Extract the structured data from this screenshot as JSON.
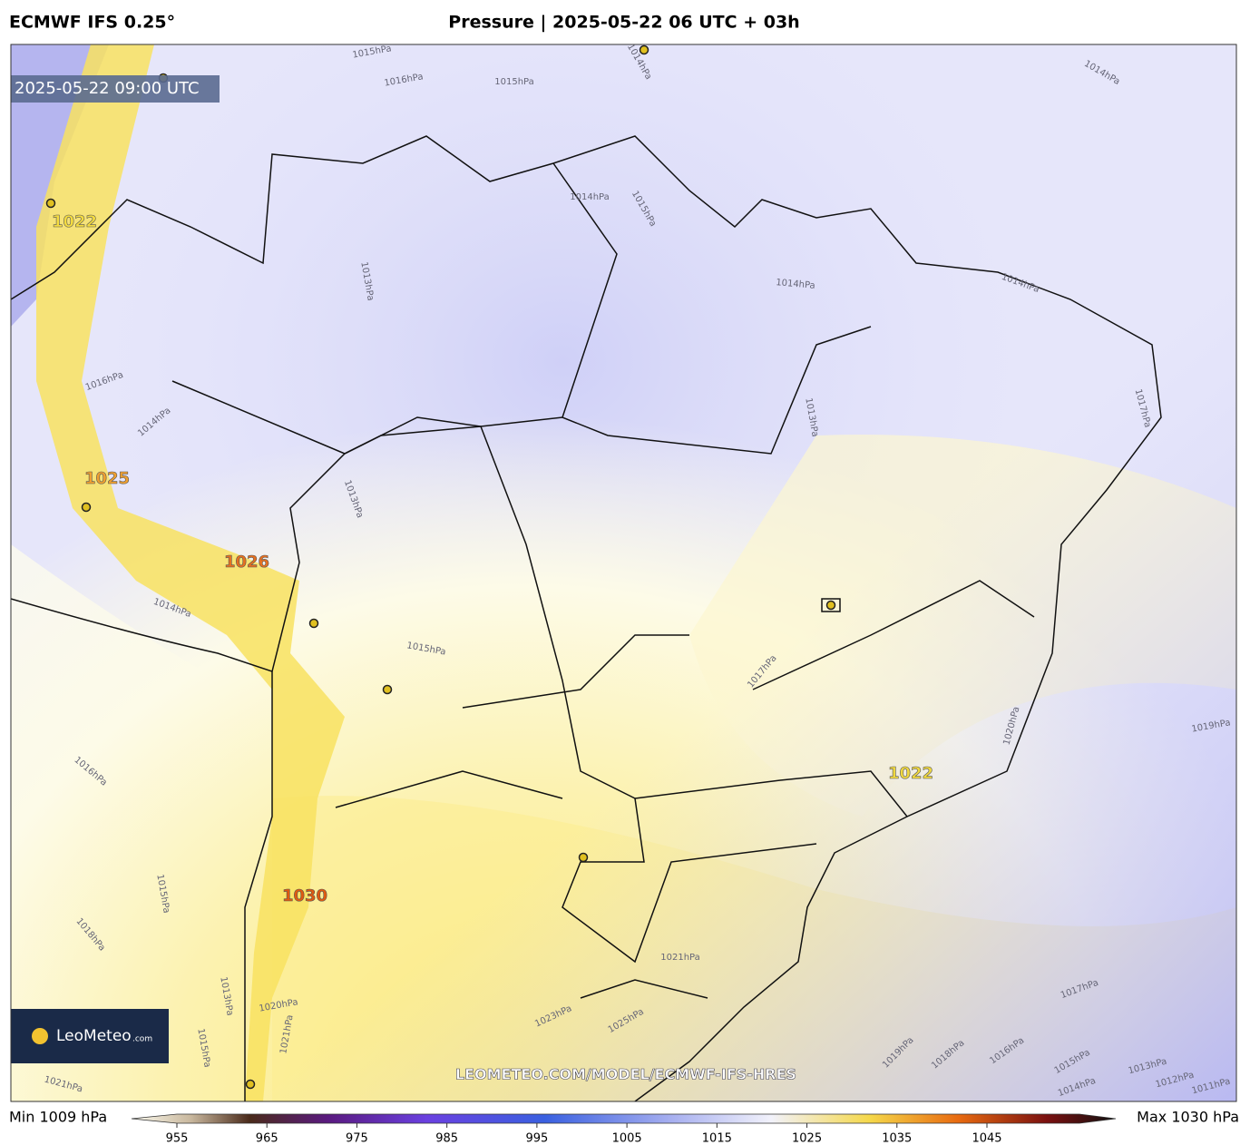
{
  "header": {
    "model": "ECMWF IFS 0.25°",
    "title": "Pressure | 2025-05-22 06 UTC + 03h"
  },
  "map": {
    "valid_time": "2025-05-22 09:00 UTC",
    "pressure_labels": [
      "1022",
      "1025",
      "1026",
      "1030",
      "1022"
    ],
    "contour_labels": [
      "1015hPa",
      "1016hPa",
      "1015hPa",
      "1014hPa",
      "1014hPa",
      "1014hPa",
      "1015hPa",
      "1013hPa",
      "1014hPa",
      "1014hPa",
      "1013hPa",
      "1017hPa",
      "1016hPa",
      "1014hPa",
      "1013hPa",
      "1014hPa",
      "1015hPa",
      "1017hPa",
      "1020hPa",
      "1019hPa",
      "1016hPa",
      "1015hPa",
      "1018hPa",
      "1021hPa",
      "1017hPa",
      "1019hPa",
      "1018hPa",
      "1016hPa",
      "1015hPa",
      "1014hPa",
      "1013hPa",
      "1012hPa",
      "1011hPa",
      "1020hPa",
      "1023hPa",
      "1021hPa",
      "1025hPa",
      "1013hPa",
      "1015hPa",
      "1021hPa"
    ],
    "watermark": "LEOMETEO.COM/MODEL/ECMWF-IFS-HRES",
    "logo": {
      "name": "LeoMeteo",
      "suffix": ".com"
    }
  },
  "colorbar": {
    "min_label": "Min 1009 hPa",
    "max_label": "Max 1030 hPa",
    "ticks": [
      955,
      965,
      975,
      985,
      995,
      1005,
      1015,
      1025,
      1035,
      1045
    ]
  }
}
